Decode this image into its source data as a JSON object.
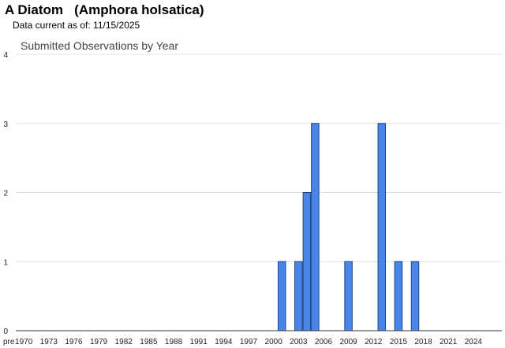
{
  "header": {
    "title": "A Diatom   (Amphora holsatica)",
    "subtitle": "Data current as of: 11/15/2025"
  },
  "chart_data": {
    "type": "bar",
    "title": "Submitted Observations by Year",
    "xlabel": "",
    "ylabel": "",
    "ylim": [
      0,
      4
    ],
    "yticks": [
      0,
      1,
      2,
      3,
      4
    ],
    "grid": true,
    "legend": "none",
    "x_tick_labels": [
      "pre",
      "1970",
      "1973",
      "1976",
      "1979",
      "1982",
      "1985",
      "1988",
      "1991",
      "1994",
      "1997",
      "2000",
      "2003",
      "2006",
      "2009",
      "2012",
      "2015",
      "2018",
      "2021",
      "2024"
    ],
    "categories": [
      "pre",
      "1970",
      "1971",
      "1972",
      "1973",
      "1974",
      "1975",
      "1976",
      "1977",
      "1978",
      "1979",
      "1980",
      "1981",
      "1982",
      "1983",
      "1984",
      "1985",
      "1986",
      "1987",
      "1988",
      "1989",
      "1990",
      "1991",
      "1992",
      "1993",
      "1994",
      "1995",
      "1996",
      "1997",
      "1998",
      "1999",
      "2000",
      "2001",
      "2002",
      "2003",
      "2004",
      "2005",
      "2006",
      "2007",
      "2008",
      "2009",
      "2010",
      "2011",
      "2012",
      "2013",
      "2014",
      "2015",
      "2016",
      "2017",
      "2018",
      "2019",
      "2020",
      "2021",
      "2022",
      "2023",
      "2024",
      "2025"
    ],
    "values": [
      0,
      0,
      0,
      0,
      0,
      0,
      0,
      0,
      0,
      0,
      0,
      0,
      0,
      0,
      0,
      0,
      0,
      0,
      0,
      0,
      0,
      0,
      0,
      0,
      0,
      0,
      0,
      0,
      0,
      0,
      0,
      0,
      1,
      0,
      1,
      2,
      3,
      0,
      0,
      0,
      1,
      0,
      0,
      0,
      3,
      0,
      1,
      0,
      1,
      0,
      0,
      0,
      0,
      0,
      0,
      0,
      0
    ],
    "colors": {
      "bar_fill": "#4a86e8",
      "bar_stroke": "#1c4587",
      "grid": "#e0e0e0",
      "axis": "#333333"
    }
  }
}
